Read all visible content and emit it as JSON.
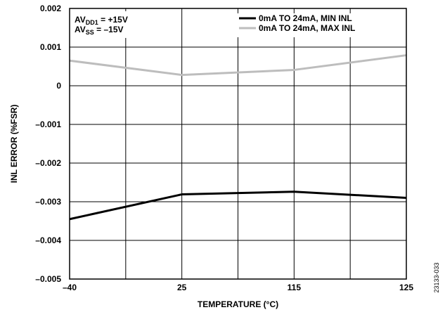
{
  "chart_data": {
    "type": "line",
    "xlabel": "TEMPERATURE (°C)",
    "ylabel": "INL ERROR (%FSR)",
    "x": [
      -40,
      25,
      115,
      125
    ],
    "x_tick_labels": [
      "–40",
      "25",
      "115",
      "125"
    ],
    "ylim": [
      -0.005,
      0.002
    ],
    "y_ticks": [
      0.002,
      0.001,
      0,
      -0.001,
      -0.002,
      -0.003,
      -0.004,
      -0.005
    ],
    "y_tick_labels": [
      "0.002",
      "0.001",
      "0",
      "–0.001",
      "–0.002",
      "–0.003",
      "–0.004",
      "–0.005"
    ],
    "grid": true,
    "legend_position": "top-right",
    "series": [
      {
        "name": "0mA TO 24mA, MIN INL",
        "color": "#000000",
        "values": [
          -0.00345,
          -0.00281,
          -0.00274,
          -0.0029
        ]
      },
      {
        "name": "0mA TO 24mA, MAX INL",
        "color": "#bdbdbd",
        "values": [
          0.00065,
          0.00028,
          0.00041,
          0.00079
        ]
      }
    ],
    "annotations": [
      {
        "prefix": "AV",
        "sub": "DD1",
        "suffix": " = +15V"
      },
      {
        "prefix": "AV",
        "sub": "SS",
        "suffix": " = –15V"
      }
    ],
    "figure_code": "23133-033"
  }
}
